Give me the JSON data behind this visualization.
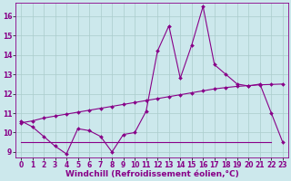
{
  "xlabel": "Windchill (Refroidissement éolien,°C)",
  "bg_color": "#cce8ec",
  "grid_color": "#aacccc",
  "line_color": "#880088",
  "ylim": [
    8.7,
    16.7
  ],
  "xlim": [
    -0.5,
    23.5
  ],
  "yticks": [
    9,
    10,
    11,
    12,
    13,
    14,
    15,
    16
  ],
  "xticks": [
    0,
    1,
    2,
    3,
    4,
    5,
    6,
    7,
    8,
    9,
    10,
    11,
    12,
    13,
    14,
    15,
    16,
    17,
    18,
    19,
    20,
    21,
    22,
    23
  ],
  "line1_x": [
    0,
    1,
    2,
    3,
    4,
    5,
    6,
    7,
    8,
    9,
    10,
    11,
    12,
    13,
    14,
    15,
    16,
    17,
    18,
    19,
    20,
    21,
    22,
    23
  ],
  "line1_y": [
    10.6,
    10.3,
    9.8,
    9.3,
    8.9,
    10.2,
    10.1,
    9.8,
    9.0,
    9.9,
    10.0,
    11.1,
    14.2,
    15.5,
    12.8,
    14.5,
    16.5,
    13.5,
    13.0,
    12.5,
    12.4,
    12.5,
    11.0,
    9.5
  ],
  "line2_x": [
    0,
    1,
    2,
    3,
    4,
    5,
    6,
    7,
    8,
    9,
    10,
    11,
    12,
    13,
    14,
    15,
    16,
    17,
    18,
    19,
    20,
    21,
    22,
    23
  ],
  "line2_y": [
    10.5,
    10.6,
    10.75,
    10.85,
    10.95,
    11.05,
    11.15,
    11.25,
    11.35,
    11.45,
    11.55,
    11.65,
    11.75,
    11.85,
    11.95,
    12.05,
    12.15,
    12.25,
    12.32,
    12.38,
    12.42,
    12.46,
    12.48,
    12.5
  ],
  "line3_x": [
    0,
    1,
    2,
    3,
    4,
    5,
    6,
    7,
    8,
    9,
    10,
    11,
    12,
    13,
    14,
    15,
    16,
    17,
    18,
    19,
    20,
    21,
    22
  ],
  "line3_y": [
    9.5,
    9.5,
    9.5,
    9.5,
    9.5,
    9.5,
    9.5,
    9.5,
    9.5,
    9.5,
    9.5,
    9.5,
    9.5,
    9.5,
    9.5,
    9.5,
    9.5,
    9.5,
    9.5,
    9.5,
    9.5,
    9.5,
    9.5
  ],
  "markersize": 2.0,
  "linewidth": 0.8,
  "xlabel_fontsize": 6.5,
  "tick_fontsize": 5.5
}
